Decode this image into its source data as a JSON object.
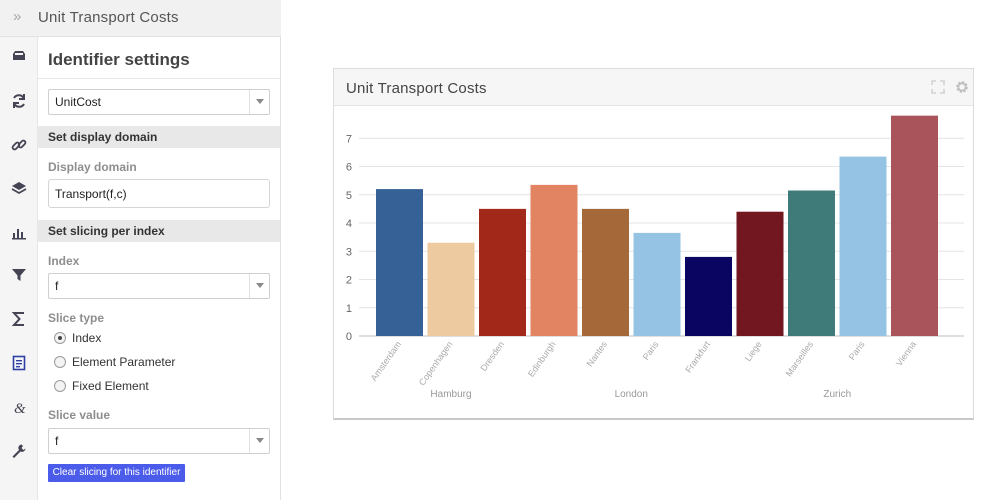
{
  "panel": {
    "title": "Unit Transport Costs",
    "collapse_glyph": "»",
    "icons": [
      "inbox-icon",
      "refresh-icon",
      "link-icon",
      "layers-icon",
      "bar-chart-icon",
      "filter-icon",
      "sigma-icon",
      "document-icon",
      "ampersand-icon",
      "wrench-icon"
    ]
  },
  "settings": {
    "title": "Identifier settings",
    "identifier_select": "UnitCost",
    "display_domain_section": "Set display domain",
    "display_domain_label": "Display domain",
    "display_domain_value": "Transport(f,c)",
    "slicing_section": "Set slicing per index",
    "index_label": "Index",
    "index_select": "f",
    "slice_type_label": "Slice type",
    "slice_types": [
      "Index",
      "Element Parameter",
      "Fixed Element"
    ],
    "slice_type_selected": "Index",
    "slice_value_label": "Slice value",
    "slice_value_select": "f",
    "clear_button": "Clear slicing for this identifier"
  },
  "widget": {
    "title": "Unit Transport Costs"
  },
  "chart_data": {
    "type": "bar",
    "categories": [
      "Amsterdam",
      "Copenhagen",
      "Dresden",
      "Edinburgh",
      "Nantes",
      "Paris",
      "Frankfurt",
      "Liege",
      "Marseilles",
      "Paris",
      "Vienna"
    ],
    "groups": [
      {
        "label": "Hamburg",
        "categories": [
          "Amsterdam",
          "Copenhagen",
          "Dresden"
        ]
      },
      {
        "label": "London",
        "categories": [
          "Edinburgh",
          "Nantes",
          "Paris",
          "Frankfurt"
        ]
      },
      {
        "label": "Zurich",
        "categories": [
          "Liege",
          "Marseilles",
          "Paris",
          "Vienna"
        ]
      }
    ],
    "values": [
      5.2,
      3.3,
      4.5,
      5.35,
      4.5,
      3.65,
      2.8,
      4.4,
      5.15,
      6.35,
      7.8
    ],
    "colors": [
      "#356196",
      "#eecaa0",
      "#a2281a",
      "#e28362",
      "#a56839",
      "#94c3e3",
      "#0a0560",
      "#72171f",
      "#3f7b78",
      "#94c3e3",
      "#a8545a"
    ],
    "ylim": [
      0,
      8
    ],
    "yticks": [
      0,
      1,
      2,
      3,
      4,
      5,
      6,
      7
    ],
    "grid": true,
    "title": "",
    "xlabel": "",
    "ylabel": ""
  }
}
